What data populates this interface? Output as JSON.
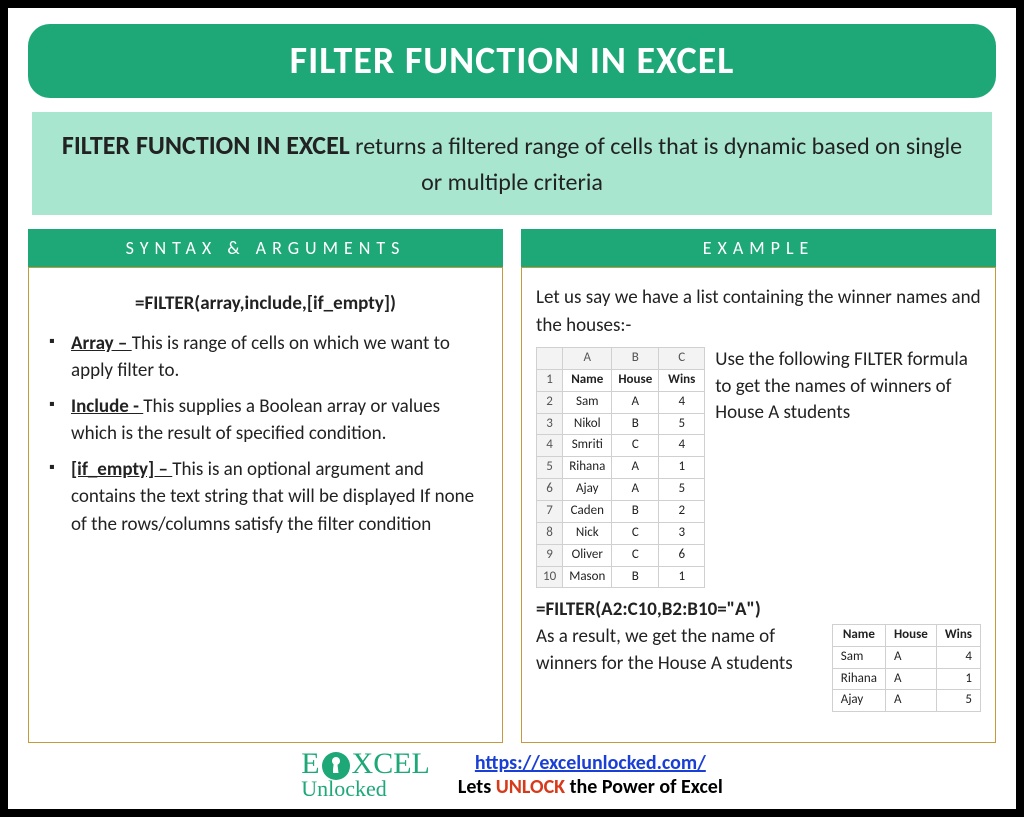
{
  "colors": {
    "primary": "#1ea878",
    "primary_light": "#a8e6d0",
    "border_gold": "#c49a3a",
    "link": "#1a3fd6",
    "accent_red": "#d63a1a",
    "frame_border": "#000000",
    "background": "#ffffff",
    "sheet_border": "#d0d0d0",
    "sheet_header_bg": "#f3f3f3"
  },
  "typography": {
    "title_fontsize": 38,
    "desc_fontsize": 24,
    "body_fontsize": 19,
    "colhead_fontsize": 18,
    "colhead_letterspacing": 6,
    "table_fontsize": 13,
    "footer_fontsize": 20
  },
  "title": "FILTER FUNCTION IN EXCEL",
  "description": {
    "lead": "FILTER FUNCTION IN EXCEL",
    "rest": " returns a filtered range of cells that is dynamic based on single or multiple criteria"
  },
  "left": {
    "heading": "SYNTAX & ARGUMENTS",
    "formula": "=FILTER(array,include,[if_empty])",
    "args": [
      {
        "name": "Array – ",
        "desc": "This is range of cells on which we want to apply filter to."
      },
      {
        "name": "Include -  ",
        "desc": "This supplies a Boolean array or values which is the result of specified condition."
      },
      {
        "name": "[if_empty] – ",
        "desc": "This is an optional argument and contains the text string that will be displayed If none of the rows/columns satisfy the filter condition"
      }
    ]
  },
  "right": {
    "heading": "EXAMPLE",
    "intro": "Let us say we have a list containing the winner names and the houses:-",
    "source_table": {
      "type": "table",
      "col_letters": [
        "A",
        "B",
        "C"
      ],
      "headers": [
        "Name",
        "House",
        "Wins"
      ],
      "rows": [
        [
          "Sam",
          "A",
          "4"
        ],
        [
          "Nikol",
          "B",
          "5"
        ],
        [
          "Smriti",
          "C",
          "4"
        ],
        [
          "Rihana",
          "A",
          "1"
        ],
        [
          "Ajay",
          "A",
          "5"
        ],
        [
          "Caden",
          "B",
          "2"
        ],
        [
          "Nick",
          "C",
          "3"
        ],
        [
          "Oliver",
          "C",
          "6"
        ],
        [
          "Mason",
          "B",
          "1"
        ]
      ]
    },
    "side_text": "Use the following FILTER formula to get the names of winners of House A students",
    "formula": "=FILTER(A2:C10,B2:B10=\"A\")",
    "result_intro": "As a result, we get the name of winners for the House A students",
    "result_table": {
      "type": "table",
      "headers": [
        "Name",
        "House",
        "Wins"
      ],
      "rows": [
        [
          "Sam",
          "A",
          "4"
        ],
        [
          "Rihana",
          "A",
          "1"
        ],
        [
          "Ajay",
          "A",
          "5"
        ]
      ]
    }
  },
  "footer": {
    "logo_line1_pre": "E",
    "logo_line1_mid": "X",
    "logo_line1_post": "CEL",
    "logo_line2": "Unlocked",
    "url": "https://excelunlocked.com/",
    "tag_pre": "Lets ",
    "tag_unlock": "UNLOCK",
    "tag_post": " the Power of Excel"
  }
}
